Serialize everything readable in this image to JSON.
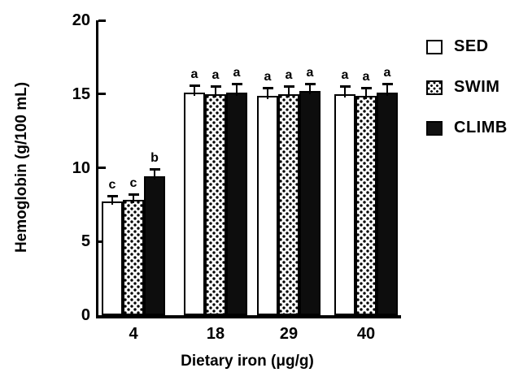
{
  "figure": {
    "background": "#ffffff",
    "ink_color": "#000000"
  },
  "chart_data": {
    "type": "bar",
    "title": "",
    "xlabel": "Dietary iron (μg/g)",
    "ylabel": "Hemoglobin (g/100 mL)",
    "categories": [
      "4",
      "18",
      "29",
      "40"
    ],
    "series": [
      {
        "name": "SED",
        "fill": "white",
        "values": [
          7.7,
          15.1,
          14.9,
          15.0
        ],
        "errors": [
          0.3,
          0.4,
          0.4,
          0.4
        ],
        "sig_letters": [
          "c",
          "a",
          "a",
          "a"
        ]
      },
      {
        "name": "SWIM",
        "fill": "dots",
        "values": [
          7.8,
          15.0,
          15.0,
          14.9
        ],
        "errors": [
          0.3,
          0.4,
          0.4,
          0.4
        ],
        "sig_letters": [
          "c",
          "a",
          "a",
          "a"
        ]
      },
      {
        "name": "CLIMB",
        "fill": "black",
        "values": [
          9.4,
          15.1,
          15.2,
          15.1
        ],
        "errors": [
          0.4,
          0.5,
          0.4,
          0.5
        ],
        "sig_letters": [
          "b",
          "a",
          "a",
          "a"
        ]
      }
    ],
    "ylim": [
      0,
      20
    ],
    "yticks": [
      0,
      5,
      10,
      15,
      20
    ],
    "grid": false,
    "legend_position": "right",
    "error_bars": "upper error bars with caps"
  }
}
